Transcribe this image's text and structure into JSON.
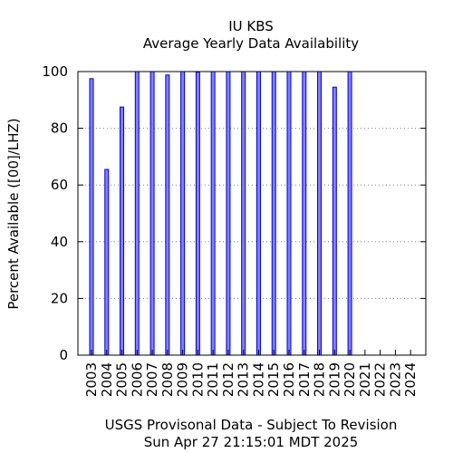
{
  "chart_data": {
    "type": "bar",
    "title": "IU KBS",
    "subtitle": "Average Yearly Data Availability",
    "ylabel": "Percent Available ([00]/LHZ)",
    "xlabel": "USGS Provisonal Data - Subject To Revision",
    "timestamp": "Sun Apr 27 21:15:01 MDT 2025",
    "ylim": [
      0,
      100
    ],
    "yticks": [
      "0",
      "20",
      "40",
      "60",
      "80",
      "100"
    ],
    "grid": true,
    "categories": [
      "2003",
      "2004",
      "2005",
      "2006",
      "2007",
      "2008",
      "2009",
      "2010",
      "2011",
      "2012",
      "2013",
      "2014",
      "2015",
      "2016",
      "2017",
      "2018",
      "2019",
      "2020",
      "2021",
      "2022",
      "2023",
      "2024"
    ],
    "values": [
      97.5,
      65.5,
      87.5,
      100,
      100,
      98.8,
      100,
      99.8,
      100,
      100,
      100,
      100,
      100,
      100,
      100,
      100,
      94.5,
      100,
      null,
      null,
      null,
      null
    ],
    "colors": {
      "bar_fill": "#8080ff",
      "bar_stroke": "#0000c8"
    }
  }
}
